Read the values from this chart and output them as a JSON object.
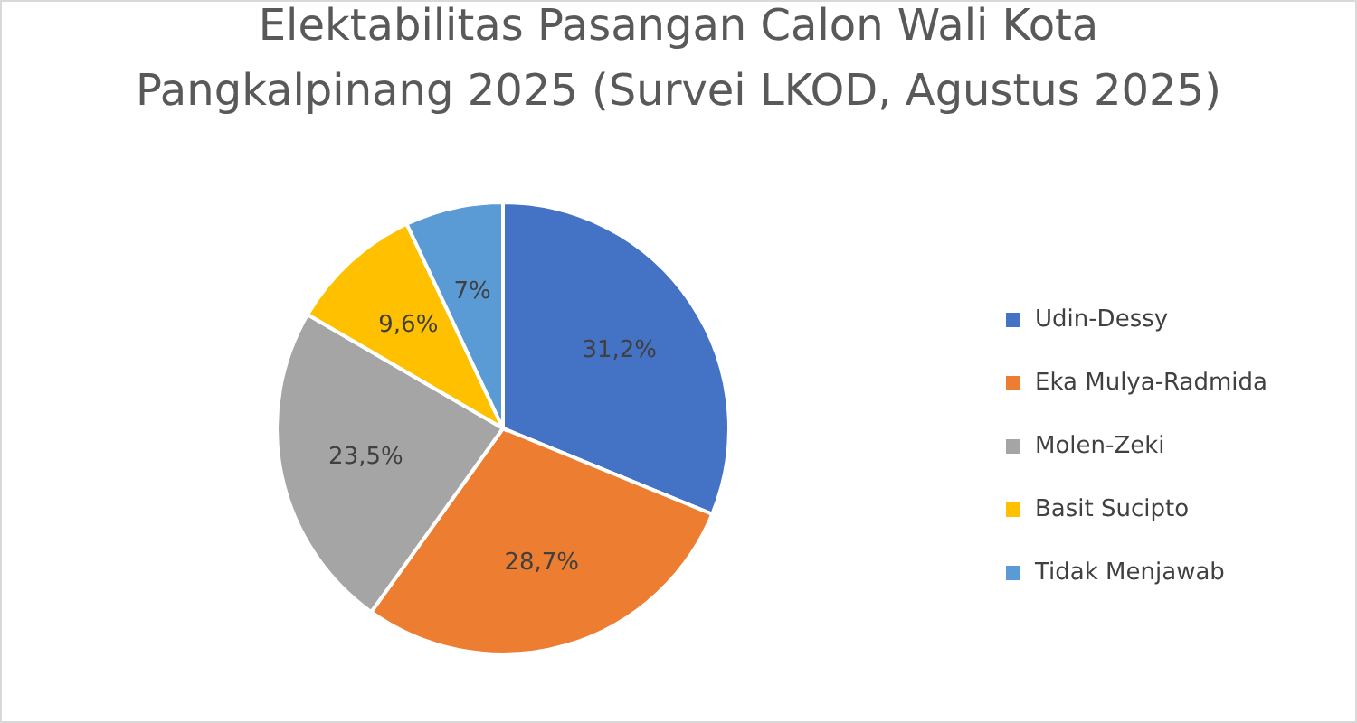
{
  "chart_data": {
    "type": "pie",
    "title": "Elektabilitas Pasangan Calon Wali Kota\nPangkalpinang 2025 (Survei LKOD, Agustus 2025)",
    "categories": [
      "Udin-Dessy",
      "Eka Mulya-Radmida",
      "Molen-Zeki",
      "Basit Sucipto",
      "Tidak Menjawab"
    ],
    "values": [
      31.2,
      28.7,
      23.5,
      9.6,
      7
    ],
    "value_labels": [
      "31,2%",
      "28,7%",
      "23,5%",
      "9,6%",
      "7%"
    ],
    "colors": [
      "#4472c4",
      "#ed7d31",
      "#a5a5a5",
      "#ffc000",
      "#5b9bd5"
    ],
    "legend": "right"
  }
}
